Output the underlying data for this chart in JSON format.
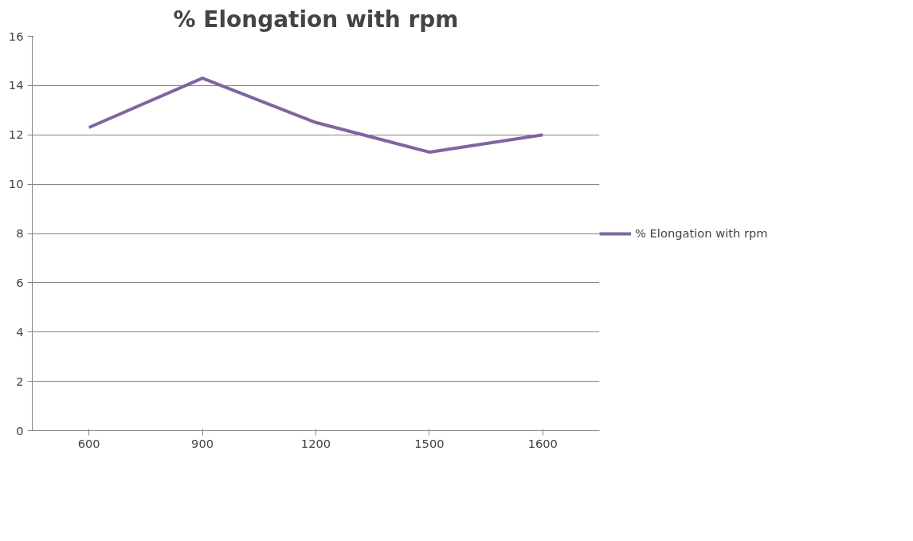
{
  "chart_data": {
    "type": "line",
    "title": "% Elongation with rpm",
    "categories": [
      "600",
      "900",
      "1200",
      "1500",
      "1600"
    ],
    "series": [
      {
        "name": "% Elongation with rpm",
        "color": "#8064a2",
        "values": [
          12.3,
          14.3,
          12.5,
          11.3,
          12.0
        ]
      }
    ],
    "ylim": [
      0,
      16
    ],
    "yticks": [
      0,
      2,
      4,
      6,
      8,
      10,
      12,
      14,
      16
    ],
    "grid": "y",
    "legend": "right",
    "marker": "none",
    "line_style": "solid"
  }
}
